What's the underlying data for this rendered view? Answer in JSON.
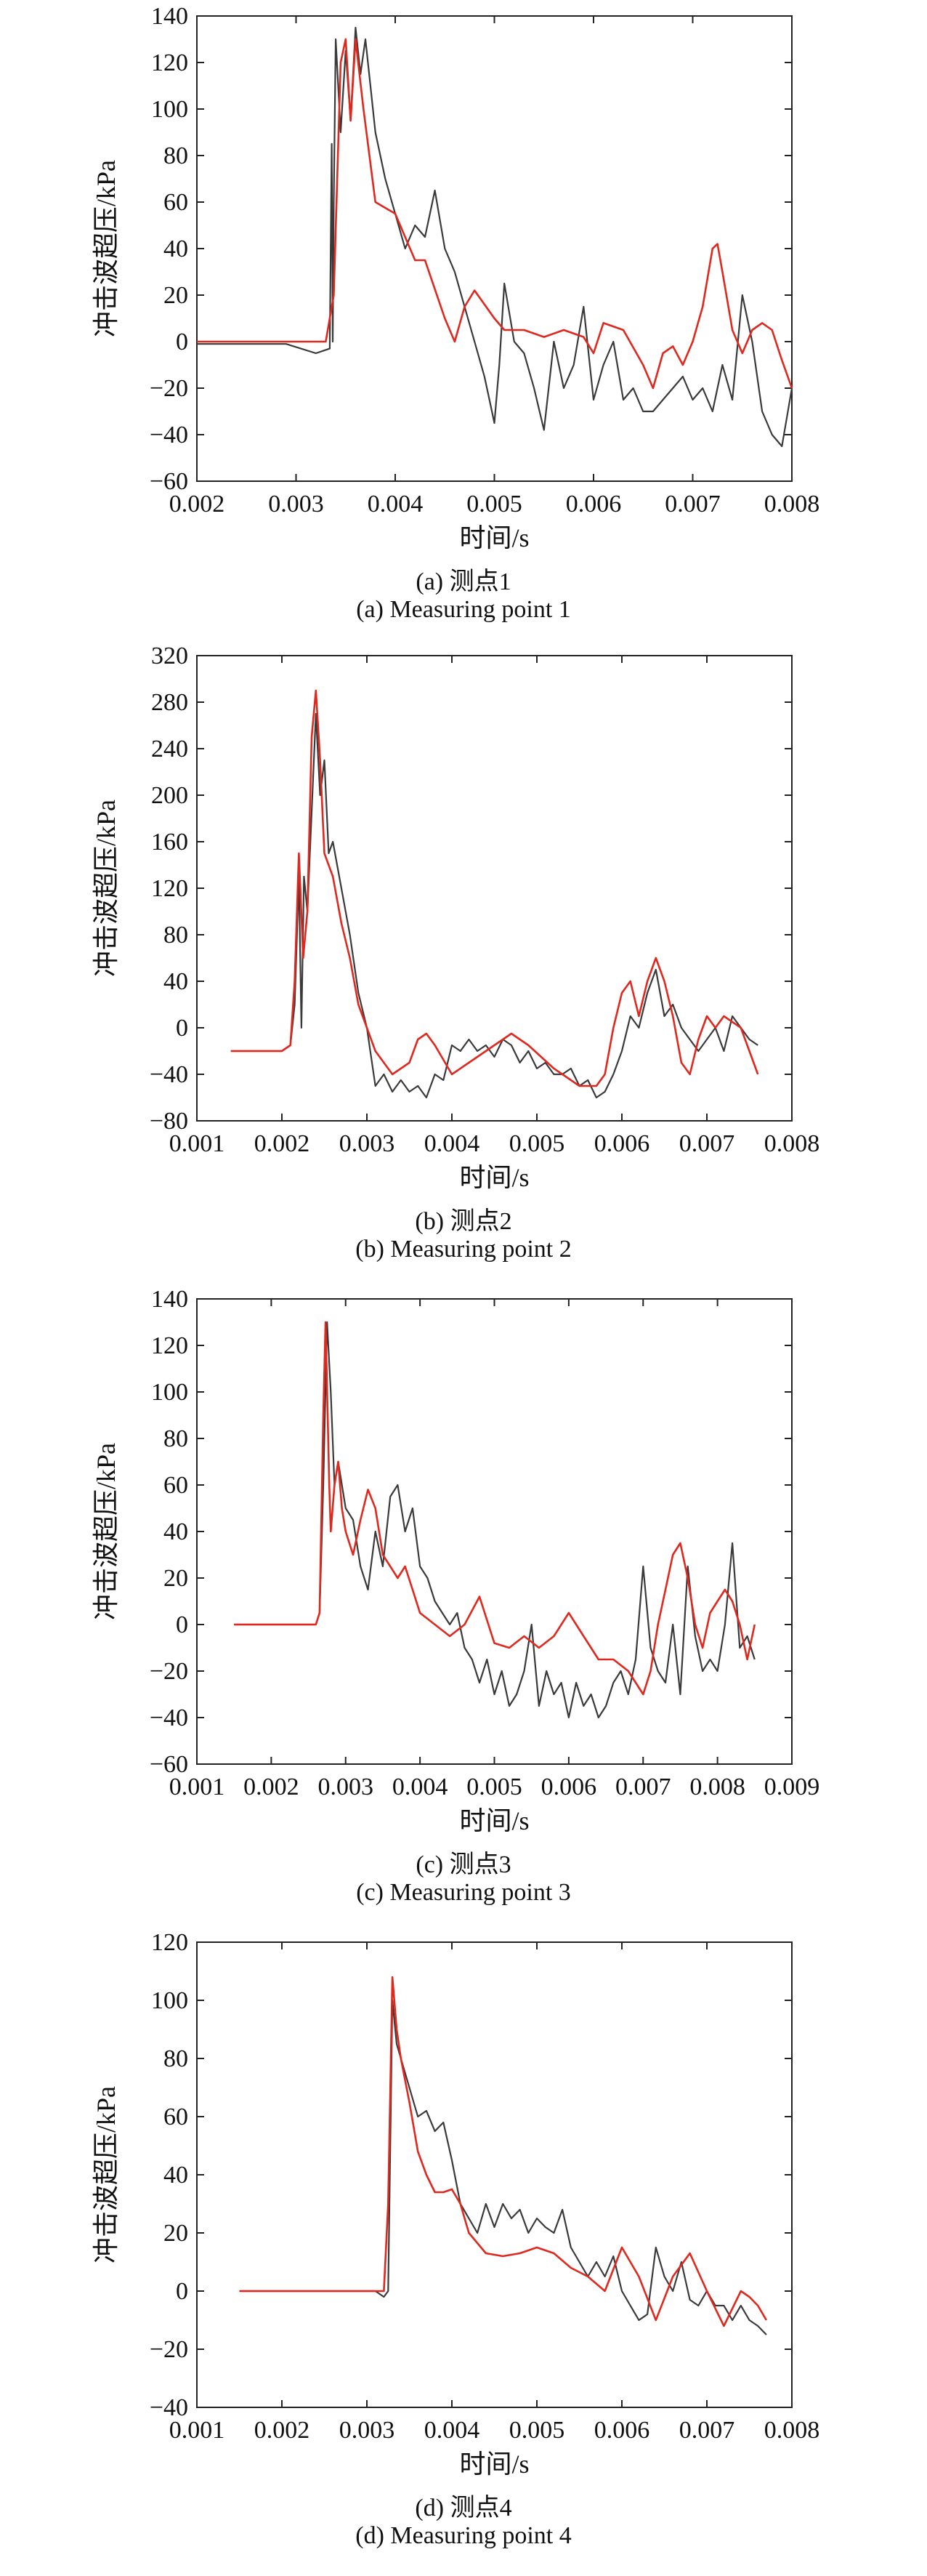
{
  "figure": {
    "panels": [
      {
        "caption_cn": "(a) 测点1",
        "caption_en": "(a) Measuring point 1"
      },
      {
        "caption_cn": "(b) 测点2",
        "caption_en": "(b) Measuring point 2"
      },
      {
        "caption_cn": "(c) 测点3",
        "caption_en": "(c) Measuring point 3"
      },
      {
        "caption_cn": "(d) 测点4",
        "caption_en": "(d) Measuring point 4"
      }
    ]
  },
  "chart_data": [
    {
      "type": "line",
      "title": "",
      "xlabel": "时间/s",
      "ylabel": "冲击波超压/kPa",
      "xlim": [
        0.002,
        0.008
      ],
      "ylim": [
        -60,
        140
      ],
      "xticks": [
        "0.002",
        "0.003",
        "0.004",
        "0.005",
        "0.006",
        "0.007",
        "0.008"
      ],
      "yticks": [
        "-60",
        "-40",
        "-20",
        "0",
        "20",
        "40",
        "60",
        "80",
        "100",
        "120",
        "140"
      ],
      "grid": false,
      "series": [
        {
          "color": "#3a3a3a",
          "x": [
            0.002,
            0.0029,
            0.0032,
            0.00334,
            0.00336,
            0.00337,
            0.00338,
            0.0034,
            0.00345,
            0.0035,
            0.00355,
            0.0036,
            0.00365,
            0.0037,
            0.00375,
            0.0038,
            0.0039,
            0.004,
            0.0041,
            0.0042,
            0.0043,
            0.0044,
            0.0045,
            0.0046,
            0.0047,
            0.0048,
            0.0049,
            0.00495,
            0.005,
            0.00505,
            0.0051,
            0.0052,
            0.0053,
            0.0054,
            0.0055,
            0.0056,
            0.0057,
            0.0058,
            0.0059,
            0.006,
            0.0061,
            0.0062,
            0.0063,
            0.0064,
            0.0065,
            0.0066,
            0.0067,
            0.0068,
            0.0069,
            0.007,
            0.0071,
            0.0072,
            0.0073,
            0.0074,
            0.0075,
            0.0076,
            0.0077,
            0.0078,
            0.0079,
            0.008
          ],
          "y": [
            -1,
            -1,
            -5,
            -3,
            85,
            0,
            60,
            130,
            90,
            125,
            95,
            135,
            115,
            130,
            110,
            90,
            70,
            55,
            40,
            50,
            45,
            65,
            40,
            30,
            15,
            0,
            -15,
            -25,
            -35,
            -10,
            25,
            0,
            -5,
            -20,
            -38,
            0,
            -20,
            -10,
            15,
            -25,
            -10,
            0,
            -25,
            -20,
            -30,
            -30,
            -25,
            -20,
            -15,
            -25,
            -20,
            -30,
            -10,
            -25,
            20,
            0,
            -30,
            -40,
            -45,
            -20
          ]
        },
        {
          "color": "#e0281e",
          "x": [
            0.002,
            0.0033,
            0.00338,
            0.00345,
            0.0035,
            0.00355,
            0.0036,
            0.00368,
            0.0038,
            0.004,
            0.0042,
            0.0043,
            0.0045,
            0.0046,
            0.0047,
            0.0048,
            0.005,
            0.0051,
            0.0053,
            0.0055,
            0.0057,
            0.0059,
            0.006,
            0.0061,
            0.0063,
            0.0065,
            0.0066,
            0.0067,
            0.0068,
            0.0069,
            0.007,
            0.0071,
            0.0072,
            0.00725,
            0.0073,
            0.0074,
            0.0075,
            0.0076,
            0.0077,
            0.0078,
            0.0079,
            0.008
          ],
          "y": [
            0,
            0,
            20,
            120,
            130,
            95,
            130,
            100,
            60,
            55,
            35,
            35,
            10,
            0,
            15,
            22,
            10,
            5,
            5,
            2,
            5,
            2,
            -5,
            8,
            5,
            -10,
            -20,
            -5,
            -2,
            -10,
            0,
            15,
            40,
            42,
            30,
            5,
            -5,
            5,
            8,
            5,
            -8,
            -20
          ]
        }
      ]
    },
    {
      "type": "line",
      "title": "",
      "xlabel": "时间/s",
      "ylabel": "冲击波超压/kPa",
      "xlim": [
        0.001,
        0.008
      ],
      "ylim": [
        -80,
        320
      ],
      "xticks": [
        "0.001",
        "0.002",
        "0.003",
        "0.004",
        "0.005",
        "0.006",
        "0.007",
        "0.008"
      ],
      "yticks": [
        "-80",
        "-40",
        "0",
        "40",
        "80",
        "120",
        "160",
        "200",
        "240",
        "280",
        "320"
      ],
      "grid": false,
      "series": [
        {
          "color": "#3a3a3a",
          "x": [
            0.0014,
            0.002,
            0.0021,
            0.00215,
            0.0022,
            0.00223,
            0.00226,
            0.0023,
            0.0024,
            0.00245,
            0.0025,
            0.00255,
            0.0026,
            0.0027,
            0.0028,
            0.0029,
            0.003,
            0.0031,
            0.0032,
            0.0033,
            0.0034,
            0.0035,
            0.0036,
            0.0037,
            0.0038,
            0.0039,
            0.004,
            0.0041,
            0.0042,
            0.0043,
            0.0044,
            0.0045,
            0.0046,
            0.0047,
            0.0048,
            0.0049,
            0.005,
            0.0051,
            0.0052,
            0.0053,
            0.0054,
            0.0055,
            0.0056,
            0.0057,
            0.0058,
            0.0059,
            0.006,
            0.0061,
            0.0062,
            0.0063,
            0.0064,
            0.0065,
            0.0066,
            0.0067,
            0.0068,
            0.0069,
            0.007,
            0.0071,
            0.0072,
            0.0073,
            0.0074,
            0.0075,
            0.0076
          ],
          "y": [
            -20,
            -20,
            -15,
            20,
            130,
            0,
            130,
            100,
            270,
            200,
            230,
            150,
            160,
            120,
            80,
            30,
            0,
            -50,
            -40,
            -55,
            -45,
            -55,
            -50,
            -60,
            -40,
            -45,
            -15,
            -20,
            -10,
            -20,
            -15,
            -25,
            -10,
            -15,
            -30,
            -20,
            -35,
            -30,
            -40,
            -40,
            -35,
            -50,
            -45,
            -60,
            -55,
            -40,
            -20,
            10,
            0,
            30,
            50,
            10,
            20,
            0,
            -10,
            -20,
            -10,
            0,
            -20,
            10,
            0,
            -10,
            -15
          ]
        },
        {
          "color": "#e0281e",
          "x": [
            0.0014,
            0.002,
            0.0021,
            0.00215,
            0.0022,
            0.00225,
            0.0023,
            0.00235,
            0.0024,
            0.00245,
            0.0025,
            0.0026,
            0.0027,
            0.0028,
            0.0029,
            0.003,
            0.0031,
            0.0033,
            0.0035,
            0.0036,
            0.0037,
            0.0038,
            0.004,
            0.0042,
            0.0045,
            0.0047,
            0.0049,
            0.0052,
            0.0055,
            0.0057,
            0.0058,
            0.0059,
            0.006,
            0.0061,
            0.0062,
            0.0063,
            0.0064,
            0.0065,
            0.0066,
            0.0067,
            0.0068,
            0.0069,
            0.007,
            0.0071,
            0.0072,
            0.0073,
            0.0074,
            0.0075,
            0.0076
          ],
          "y": [
            -20,
            -20,
            -15,
            40,
            150,
            60,
            100,
            250,
            290,
            230,
            150,
            130,
            90,
            60,
            20,
            0,
            -20,
            -40,
            -30,
            -10,
            -5,
            -15,
            -40,
            -30,
            -15,
            -5,
            -15,
            -35,
            -50,
            -50,
            -40,
            0,
            30,
            40,
            10,
            40,
            60,
            40,
            10,
            -30,
            -40,
            -10,
            10,
            0,
            10,
            5,
            0,
            -20,
            -40
          ]
        }
      ]
    },
    {
      "type": "line",
      "title": "",
      "xlabel": "时间/s",
      "ylabel": "冲击波超压/kPa",
      "xlim": [
        0.001,
        0.009
      ],
      "ylim": [
        -60,
        140
      ],
      "xticks": [
        "0.001",
        "0.002",
        "0.003",
        "0.004",
        "0.005",
        "0.006",
        "0.007",
        "0.008",
        "0.009"
      ],
      "yticks": [
        "-60",
        "-40",
        "-20",
        "0",
        "20",
        "40",
        "60",
        "80",
        "100",
        "120",
        "140"
      ],
      "grid": false,
      "series": [
        {
          "color": "#3a3a3a",
          "x": [
            0.0015,
            0.0026,
            0.00265,
            0.0027,
            0.00275,
            0.0028,
            0.00285,
            0.0029,
            0.003,
            0.0031,
            0.0032,
            0.0033,
            0.0034,
            0.0035,
            0.0036,
            0.0037,
            0.0038,
            0.0039,
            0.004,
            0.0041,
            0.0042,
            0.0043,
            0.0044,
            0.0045,
            0.0046,
            0.0047,
            0.0048,
            0.0049,
            0.005,
            0.0051,
            0.0052,
            0.0053,
            0.0054,
            0.0055,
            0.0056,
            0.0057,
            0.0058,
            0.0059,
            0.006,
            0.0061,
            0.0062,
            0.0063,
            0.0064,
            0.0065,
            0.0066,
            0.0067,
            0.0068,
            0.0069,
            0.007,
            0.0071,
            0.0072,
            0.0073,
            0.0074,
            0.0075,
            0.0076,
            0.0077,
            0.0078,
            0.0079,
            0.008,
            0.0081,
            0.0082,
            0.0083,
            0.0084,
            0.0085
          ],
          "y": [
            0,
            0,
            5,
            60,
            130,
            100,
            60,
            70,
            50,
            45,
            25,
            15,
            40,
            25,
            55,
            60,
            40,
            50,
            25,
            20,
            10,
            5,
            0,
            5,
            -10,
            -15,
            -25,
            -15,
            -30,
            -20,
            -35,
            -30,
            -20,
            0,
            -35,
            -20,
            -30,
            -25,
            -40,
            -25,
            -35,
            -30,
            -40,
            -35,
            -25,
            -20,
            -30,
            -15,
            25,
            -10,
            -20,
            -25,
            0,
            -30,
            25,
            -5,
            -20,
            -15,
            -20,
            0,
            35,
            -10,
            -5,
            -15
          ]
        },
        {
          "color": "#e0281e",
          "x": [
            0.0015,
            0.0026,
            0.00265,
            0.0027,
            0.00273,
            0.00278,
            0.0028,
            0.00285,
            0.0029,
            0.00295,
            0.003,
            0.0031,
            0.0032,
            0.0033,
            0.0034,
            0.0035,
            0.0036,
            0.0037,
            0.0038,
            0.0039,
            0.004,
            0.0042,
            0.0044,
            0.0046,
            0.0048,
            0.005,
            0.0052,
            0.0054,
            0.0056,
            0.0058,
            0.006,
            0.0062,
            0.0064,
            0.0066,
            0.0068,
            0.007,
            0.0071,
            0.0072,
            0.0073,
            0.0074,
            0.0075,
            0.0076,
            0.0077,
            0.0078,
            0.0079,
            0.008,
            0.0081,
            0.0082,
            0.0083,
            0.0084,
            0.0085
          ],
          "y": [
            0,
            0,
            5,
            90,
            130,
            60,
            40,
            60,
            70,
            50,
            40,
            30,
            45,
            58,
            50,
            30,
            25,
            20,
            25,
            15,
            5,
            0,
            -5,
            0,
            12,
            -8,
            -10,
            -5,
            -10,
            -5,
            5,
            -5,
            -15,
            -15,
            -20,
            -30,
            -20,
            0,
            15,
            30,
            35,
            20,
            0,
            -10,
            5,
            10,
            15,
            10,
            0,
            -15,
            0
          ]
        }
      ]
    },
    {
      "type": "line",
      "title": "",
      "xlabel": "时间/s",
      "ylabel": "冲击波超压/kPa",
      "xlim": [
        0.001,
        0.008
      ],
      "ylim": [
        -40,
        120
      ],
      "xticks": [
        "0.001",
        "0.002",
        "0.003",
        "0.004",
        "0.005",
        "0.006",
        "0.007",
        "0.008"
      ],
      "yticks": [
        "-40",
        "-20",
        "0",
        "20",
        "40",
        "60",
        "80",
        "100",
        "120"
      ],
      "grid": false,
      "series": [
        {
          "color": "#3a3a3a",
          "x": [
            0.0015,
            0.0031,
            0.0032,
            0.00325,
            0.0033,
            0.00335,
            0.0034,
            0.0035,
            0.0036,
            0.0037,
            0.0038,
            0.0039,
            0.004,
            0.0041,
            0.0042,
            0.0043,
            0.0044,
            0.0045,
            0.0046,
            0.0047,
            0.0048,
            0.0049,
            0.005,
            0.0051,
            0.0052,
            0.0053,
            0.0054,
            0.0055,
            0.0056,
            0.0057,
            0.0058,
            0.0059,
            0.006,
            0.0061,
            0.0062,
            0.0063,
            0.0064,
            0.0065,
            0.0066,
            0.0067,
            0.0068,
            0.0069,
            0.007,
            0.0071,
            0.0072,
            0.0073,
            0.0074,
            0.0075,
            0.0076,
            0.0077
          ],
          "y": [
            0,
            0,
            -2,
            0,
            100,
            85,
            80,
            70,
            60,
            62,
            55,
            58,
            45,
            30,
            25,
            20,
            30,
            22,
            30,
            25,
            28,
            20,
            25,
            22,
            20,
            28,
            15,
            10,
            5,
            10,
            5,
            12,
            0,
            -5,
            -10,
            -8,
            15,
            5,
            0,
            10,
            -3,
            -5,
            0,
            -5,
            -5,
            -10,
            -5,
            -10,
            -12,
            -15
          ]
        },
        {
          "color": "#e0281e",
          "x": [
            0.0015,
            0.0031,
            0.0032,
            0.00325,
            0.0033,
            0.00335,
            0.0034,
            0.0035,
            0.0036,
            0.0037,
            0.0038,
            0.0039,
            0.004,
            0.0041,
            0.0042,
            0.0044,
            0.0046,
            0.0048,
            0.005,
            0.0052,
            0.0054,
            0.0056,
            0.0058,
            0.006,
            0.0062,
            0.0064,
            0.0066,
            0.0068,
            0.007,
            0.0072,
            0.0074,
            0.0075,
            0.0076,
            0.0077
          ],
          "y": [
            0,
            0,
            0,
            30,
            108,
            90,
            80,
            65,
            48,
            40,
            34,
            34,
            35,
            30,
            20,
            13,
            12,
            13,
            15,
            13,
            8,
            5,
            0,
            15,
            5,
            -10,
            5,
            13,
            0,
            -12,
            0,
            -2,
            -5,
            -10
          ]
        }
      ]
    }
  ]
}
